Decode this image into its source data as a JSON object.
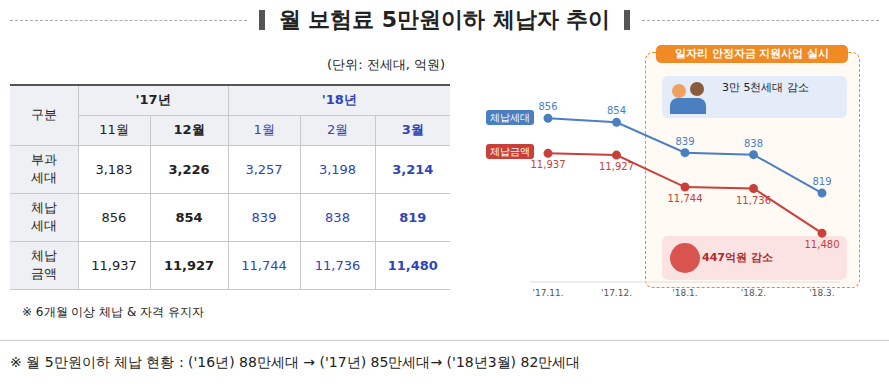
{
  "title": "월 보험료 5만원이하 체납자 추이",
  "table": {
    "unit": "(단위: 전세대, 억원)",
    "header_label": "구분",
    "groups": [
      {
        "year": "'17년",
        "months": [
          "11월",
          "12월"
        ]
      },
      {
        "year": "'18년",
        "months": [
          "1월",
          "2월",
          "3월"
        ]
      }
    ],
    "rows": [
      {
        "label": "부과\n세대",
        "cells": [
          "3,183",
          "3,226",
          "3,257",
          "3,198",
          "3,214"
        ]
      },
      {
        "label": "체납\n세대",
        "cells": [
          "856",
          "854",
          "839",
          "838",
          "819"
        ]
      },
      {
        "label": "체납\n금액",
        "cells": [
          "11,937",
          "11,927",
          "11,744",
          "11,736",
          "11,480"
        ]
      }
    ],
    "note": "※ 6개월 이상 체납 & 자격 유지자"
  },
  "chart_data": {
    "type": "line",
    "categories": [
      "'17.11.",
      "'17.12.",
      "'18.1.",
      "'18.2.",
      "'18.3."
    ],
    "series": [
      {
        "name": "체납세대",
        "color": "#4a7fc1",
        "values": [
          856,
          854,
          839,
          838,
          819
        ],
        "axis": "y"
      },
      {
        "name": "체납금액",
        "color": "#c9403a",
        "values": [
          11937,
          11927,
          11744,
          11736,
          11480
        ],
        "value_labels": [
          "11,937",
          "11,927",
          "11,744",
          "11,736",
          "11,480"
        ],
        "axis": "y2"
      }
    ],
    "ylim": [
      775,
      870
    ],
    "y2lim": [
      11200,
      12300
    ],
    "data_labels": true,
    "tick_labels": "x",
    "marker": "circle",
    "annotations": [
      "일자리 안정자금 지원사업 실시",
      "3만 5천세대 감소",
      "447억원 감소"
    ]
  },
  "footnote": "※ 월 5만원이하 체납 현황 : ('16년) 88만세대 → ('17년) 85만세대→ ('18년3월) 82만세대"
}
